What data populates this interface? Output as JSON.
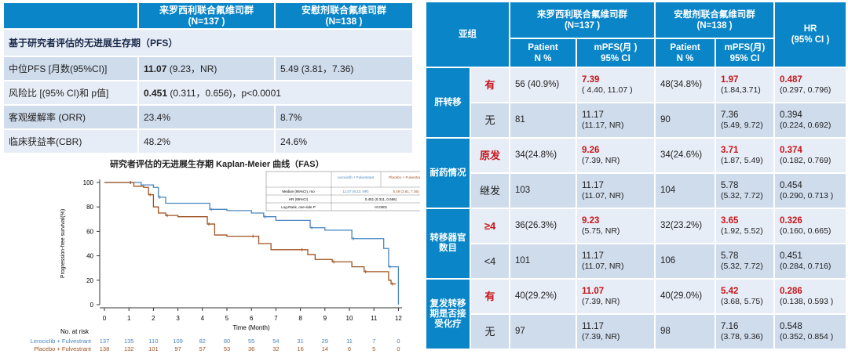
{
  "summary_table": {
    "headers": [
      "",
      "来罗西利联合氟维司群\n(N=137 )",
      "安慰剂联合氟维司群\n(N=138 )"
    ],
    "section": "基于研究者评估的无进展生存期（PFS）",
    "rows": [
      {
        "label": "中位PFS [月数(95%CI)]",
        "a_bold": "11.07",
        "a": " (9.23，NR)",
        "b": "5.49 (3.81，7.36)"
      },
      {
        "label": "风险比 [(95% CI)和 p值]",
        "a_bold": "0.451",
        "a": " (0.311，0.656)，p<0.0001",
        "span": true
      },
      {
        "label": "客观缓解率 (ORR)",
        "a": "23.4%",
        "b": "8.7%"
      },
      {
        "label": "临床获益率(CBR)",
        "a": "48.2%",
        "b": "24.6%"
      }
    ]
  },
  "chart_data": {
    "type": "line",
    "title": "研究者评估的无进展生存期 Kaplan-Meier 曲线（FAS）",
    "xlabel": "Time (Month)",
    "ylabel": "Progression-free survival(%)",
    "xlim": [
      0,
      12
    ],
    "ylim": [
      0,
      100
    ],
    "xticks": [
      0,
      1,
      2,
      3,
      4,
      5,
      6,
      7,
      8,
      9,
      10,
      11,
      12
    ],
    "yticks": [
      0,
      20,
      40,
      60,
      80,
      100
    ],
    "colors": {
      "leroc": "#4a86c0",
      "placebo": "#a0521e"
    },
    "series": [
      {
        "name": "Lerociclib + Fulvestrant",
        "x": [
          0,
          1,
          1.5,
          2,
          2.2,
          2.5,
          4,
          4.3,
          5,
          6,
          6.5,
          7,
          8,
          8.4,
          9,
          10,
          10.1,
          11.3,
          11.4,
          11.6,
          12,
          12
        ],
        "y": [
          100,
          100,
          98,
          96,
          88,
          83,
          83,
          78,
          77,
          75,
          72,
          69,
          69,
          63,
          61,
          61,
          54,
          54,
          46,
          31,
          31,
          0
        ]
      },
      {
        "name": "Placebo + Fulvestrant",
        "x": [
          0,
          1,
          1.2,
          1.6,
          1.8,
          2,
          2.2,
          2.5,
          3,
          4,
          4.2,
          4.5,
          5,
          6,
          6.3,
          6.8,
          8,
          8.3,
          8.6,
          9.3,
          10,
          10.1,
          10.6,
          11.4,
          11.6,
          11.7,
          11.9
        ],
        "y": [
          100,
          100,
          97,
          96,
          90,
          80,
          75,
          73,
          72,
          72,
          66,
          57,
          56,
          56,
          50,
          45,
          45,
          41,
          37,
          35,
          35,
          31,
          27,
          27,
          20,
          17,
          17
        ]
      }
    ],
    "inset_table": {
      "headers": [
        "",
        "Lerociclib + Fulvestrant",
        "Placebo + Fulvestrant"
      ],
      "rows": [
        [
          "Median (95%CI), mo",
          "11.07 (9.23, NR)",
          "5.49 (3.81, 7.36)"
        ],
        [
          "HR (95%CI)",
          "0.451  (0.311, 0.656)"
        ],
        [
          "Log-Rank, one-side P",
          "<0.0001"
        ]
      ]
    },
    "risk_table": {
      "title": "No. at risk",
      "rows": [
        {
          "label": "Lerociclib + Fulvestrant",
          "values": [
            137,
            135,
            110,
            109,
            82,
            80,
            55,
            54,
            31,
            29,
            11,
            7,
            0
          ]
        },
        {
          "label": "Placebo + Fulvestrant",
          "values": [
            138,
            132,
            101,
            97,
            57,
            53,
            36,
            32,
            16,
            14,
            6,
            5,
            0
          ]
        }
      ]
    }
  },
  "subgroup_table": {
    "h_subgroup": "亚组",
    "h_arm_a": "来罗西利联合氟维司群\n(N=137 )",
    "h_arm_b": "安慰剂联合氟维司群\n(N=138 )",
    "h_hr": "HR\n(95% CI )",
    "h_patient": "Patient\nN %",
    "h_mpfs_a": "mPFS(月 )\n95% CI",
    "h_mpfs_b": "mPFS(月)\n95% CI",
    "groups": [
      {
        "name": "肝转移",
        "rows": [
          {
            "sub": "有",
            "hl": true,
            "na": "56 (40.9%)",
            "ma": "7.39",
            "ca": "( 4.40, 11.07 )",
            "nb": "48(34.8%)",
            "mb": "1.97",
            "cb": "(1.84,3.71)",
            "hr": "0.487",
            "chr": "(0.297, 0.796)"
          },
          {
            "sub": "无",
            "na": "81",
            "ma": "11.17",
            "ca": "(11.17, NR)",
            "nb": "90",
            "mb": "7.36",
            "cb": "(5.49, 9.72)",
            "hr": "0.394",
            "chr": "(0.224, 0.692)"
          }
        ]
      },
      {
        "name": "耐药情况",
        "rows": [
          {
            "sub": "原发",
            "hl": true,
            "na": "34(24.8%)",
            "ma": "9.26",
            "ca": "(7.39, NR)",
            "nb": "34(24.6%)",
            "mb": "3.71",
            "cb": "(1.87, 5.49)",
            "hr": "0.374",
            "chr": "(0.182, 0.769)"
          },
          {
            "sub": "继发",
            "na": "103",
            "ma": "11.17",
            "ca": "(11.07, NR)",
            "nb": "104",
            "mb": "5.78",
            "cb": "(5.32, 7.72)",
            "hr": "0.454",
            "chr": "(0.290, 0.713 )"
          }
        ]
      },
      {
        "name": "转移器官数目",
        "rows": [
          {
            "sub": "≥4",
            "hl": true,
            "na": "36(26.3%)",
            "ma": "9.23",
            "ca": "(5.75, NR)",
            "nb": "32(23.2%)",
            "mb": "3.65",
            "cb": "(1.92, 5.52)",
            "hr": "0.326",
            "chr": "(0.160, 0.665)"
          },
          {
            "sub": "<4",
            "na": "101",
            "ma": "11.17",
            "ca": "(11.07, NR)",
            "nb": "106",
            "mb": "5.78",
            "cb": "(5.32, 7.72)",
            "hr": "0.451",
            "chr": "(0.284, 0.716)"
          }
        ]
      },
      {
        "name": "复发转移期是否接受化疗",
        "rows": [
          {
            "sub": "有",
            "hl": true,
            "na": "40(29.2%)",
            "ma": "11.07",
            "ca": "(7.39, NR)",
            "nb": "40(29.0%)",
            "mb": "5.42",
            "cb": "(3.68, 5.75)",
            "hr": "0.286",
            "chr": "(0.138, 0.593 )"
          },
          {
            "sub": "无",
            "na": "97",
            "ma": "11.17",
            "ca": "(7.39, NR)",
            "nb": "98",
            "mb": "7.16",
            "cb": "(3.78, 9.36)",
            "hr": "0.548",
            "chr": "(0.352, 0.854 )"
          }
        ]
      }
    ]
  }
}
